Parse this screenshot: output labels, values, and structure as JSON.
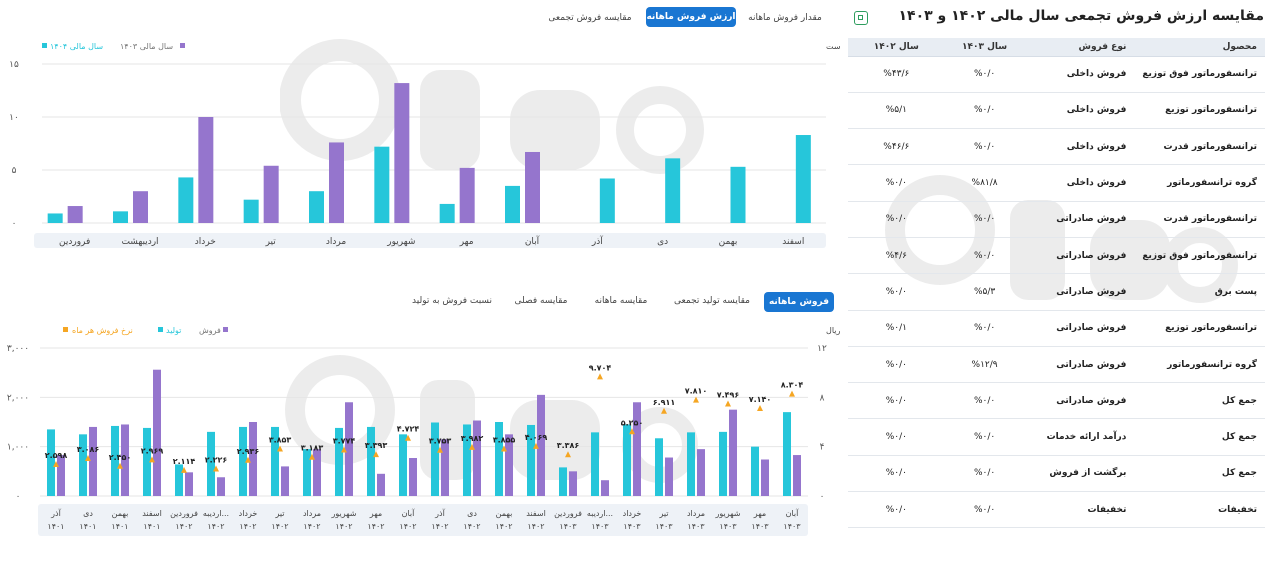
{
  "top_tabs": [
    "مقدار فروش ماهانه",
    "ارزش فروش ماهانه",
    "مقایسه فروش تجمعی"
  ],
  "top_tab_active": 1,
  "bottom_tabs": [
    "فروش ماهانه",
    "مقایسه تولید تجمعی",
    "مقایسه ماهانه",
    "مقایسه فصلی",
    "نسبت فروش به تولید"
  ],
  "bottom_tab_active": 0,
  "table_panel": {
    "title": "مقایسه ارزش فروش تجمعی سال مالی ۱۴۰۲ و ۱۴۰۳",
    "headers": [
      "محصول",
      "نوع فروش",
      "سال ۱۴۰۳",
      "سال ۱۴۰۲"
    ],
    "rows": [
      [
        "ترانسفورماتور فوق توزیع",
        "فروش داخلی",
        "%۰/۰",
        "%۴۳/۶"
      ],
      [
        "ترانسفورماتور توزیع",
        "فروش داخلی",
        "%۰/۰",
        "%۵/۱"
      ],
      [
        "ترانسفورماتور قدرت",
        "فروش داخلی",
        "%۰/۰",
        "%۴۶/۶"
      ],
      [
        "گروه ترانسفورماتور",
        "فروش داخلی",
        "%۸۱/۸",
        "%۰/۰"
      ],
      [
        "ترانسفورماتور قدرت",
        "فروش صادراتی",
        "%۰/۰",
        "%۰/۰"
      ],
      [
        "ترانسفورماتور فوق توزیع",
        "فروش صادراتی",
        "%۰/۰",
        "%۴/۶"
      ],
      [
        "پست برق",
        "فروش صادراتی",
        "%۵/۳",
        "%۰/۰"
      ],
      [
        "ترانسفورماتور توزیع",
        "فروش صادراتی",
        "%۰/۰",
        "%۰/۱"
      ],
      [
        "گروه ترانسفورماتور",
        "فروش صادراتی",
        "%۱۲/۹",
        "%۰/۰"
      ],
      [
        "جمع کل",
        "فروش صادراتی",
        "%۰/۰",
        "%۰/۰"
      ],
      [
        "جمع کل",
        "درآمد ارائه خدمات",
        "%۰/۰",
        "%۰/۰"
      ],
      [
        "جمع کل",
        "برگشت از فروش",
        "%۰/۰",
        "%۰/۰"
      ],
      [
        "تخفیفات",
        "تخفیفات",
        "%۰/۰",
        "%۰/۰"
      ]
    ]
  },
  "colors": {
    "teal": "#26c6da",
    "purple": "#9575cd",
    "orange": "#f5a623",
    "blue": "#1976d2",
    "grid": "#e6e6e6",
    "axisband": "#eef2f7"
  },
  "chart_data": [
    {
      "type": "bar",
      "note_label": "اعداد بر اساس هزار میلیارد ریال است",
      "categories": [
        "فروردین",
        "اردیبهشت",
        "خرداد",
        "تیر",
        "مرداد",
        "شهریور",
        "مهر",
        "آبان",
        "آذر",
        "دی",
        "بهمن",
        "اسفند"
      ],
      "series": [
        {
          "name": "سال مالی ۱۴۰۴",
          "color": "#26c6da",
          "values": [
            0.9,
            1.1,
            4.3,
            2.2,
            3.0,
            7.2,
            1.8,
            3.5,
            4.2,
            6.1,
            5.3,
            8.3
          ]
        },
        {
          "name": "سال مالی ۱۴۰۳",
          "color": "#9575cd",
          "values": [
            1.6,
            3.0,
            10.0,
            5.4,
            7.6,
            13.2,
            5.2,
            6.7,
            null,
            null,
            null,
            null
          ]
        }
      ],
      "yticks": [
        "۰",
        "۵",
        "۱۰",
        "۱۵"
      ],
      "ylim": [
        0,
        15
      ],
      "legend": "top-left",
      "grid": true
    },
    {
      "type": "bar",
      "left_axis_label": "میلیارد ریال",
      "categories": [
        "آذر ۱۴۰۱",
        "دی ۱۴۰۱",
        "بهمن ۱۴۰۱",
        "اسفند ۱۴۰۱",
        "فروردین ۱۴۰۲",
        "اردیبه... ۱۴۰۲",
        "خرداد ۱۴۰۲",
        "تیر ۱۴۰۲",
        "مرداد ۱۴۰۲",
        "شهریور ۱۴۰۲",
        "مهر ۱۴۰۲",
        "آبان ۱۴۰۲",
        "آذر ۱۴۰۲",
        "دی ۱۴۰۲",
        "بهمن ۱۴۰۲",
        "اسفند ۱۴۰۲",
        "فروردین ۱۴۰۳",
        "اردیبه... ۱۴۰۳",
        "خرداد ۱۴۰۳",
        "تیر ۱۴۰۳",
        "مرداد ۱۴۰۳",
        "شهریور ۱۴۰۳",
        "مهر ۱۴۰۳",
        "آبان ۱۴۰۳"
      ],
      "series": [
        {
          "name": "فروش",
          "color": "#9575cd",
          "values": [
            830,
            1400,
            1450,
            2560,
            480,
            380,
            1500,
            600,
            950,
            1900,
            450,
            770,
            1150,
            1530,
            1250,
            2050,
            500,
            320,
            1900,
            780,
            950,
            1750,
            740,
            830
          ]
        },
        {
          "name": "تولید",
          "color": "#26c6da",
          "values": [
            1350,
            1250,
            1420,
            1380,
            640,
            1300,
            1400,
            1400,
            950,
            1380,
            1400,
            1250,
            1490,
            1450,
            1500,
            1440,
            580,
            1290,
            1450,
            1170,
            1290,
            1300,
            1000,
            1700
          ]
        },
        {
          "name": "نرخ فروش هر ماه",
          "color": "#f5a623",
          "values": [
            2.598,
            3.086,
            2.45,
            2.969,
            2.114,
            2.226,
            2.936,
            3.853,
            3.183,
            3.774,
            3.393,
            4.724,
            3.753,
            3.982,
            3.855,
            4.069,
            3.386,
            9.704,
            5.25,
            6.911,
            7.81,
            7.496,
            7.14,
            8.304
          ]
        }
      ],
      "point_labels": [
        "۲.۵۹۸",
        "۳.۰۸۶",
        "۲.۴۵۰",
        "۲.۹۶۹",
        "۲.۱۱۴",
        "۲.۲۲۶",
        "۲.۹۳۶",
        "۳.۸۵۳",
        "۳.۱۸۳",
        "۳.۷۷۴",
        "۳.۳۹۳",
        "۴.۷۲۴",
        "۳.۷۵۳",
        "۳.۹۸۲",
        "۳.۸۵۵",
        "۴.۰۶۹",
        "۳.۳۸۶",
        "۹.۷۰۴",
        "۵.۲۵۰",
        "۶.۹۱۱",
        "۷.۸۱۰",
        "۷.۴۹۶",
        "۷.۱۴۰",
        "۸.۳۰۴"
      ],
      "yticks_left": [
        "۰",
        "۱,۰۰۰",
        "۲,۰۰۰",
        "۳,۰۰۰"
      ],
      "ylim_left": [
        0,
        3000
      ],
      "yticks_right": [
        "۰",
        "۴",
        "۸",
        "۱۲"
      ],
      "ylim_right": [
        0,
        12
      ],
      "legend": "top-left",
      "grid": true
    }
  ]
}
